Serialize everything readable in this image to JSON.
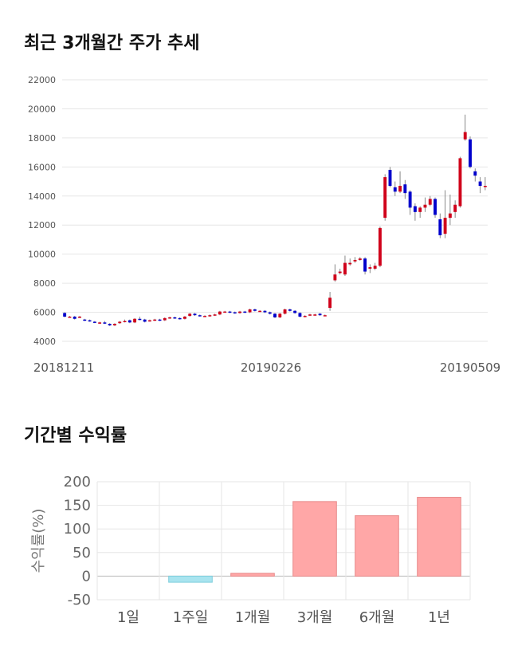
{
  "sections": {
    "price_title": "최근 3개월간 주가 추세",
    "returns_title": "기간별 수익률"
  },
  "colors": {
    "up": "#d0021b",
    "down": "#0000cc",
    "wick": "#888888",
    "bar_pos": "#ffa7a7",
    "bar_neg": "#a8e4ef"
  },
  "chart_data": [
    {
      "type": "candlestick",
      "title": "최근 3개월간 주가 추세",
      "ylim": [
        4000,
        22000
      ],
      "yticks": [
        4000,
        6000,
        8000,
        10000,
        12000,
        14000,
        16000,
        18000,
        20000,
        22000
      ],
      "date_labels": [
        "20181211",
        "20190226",
        "20190509"
      ],
      "grid": true,
      "candles": [
        [
          5950,
          5700,
          6000,
          5650
        ],
        [
          5700,
          5700,
          5750,
          5650
        ],
        [
          5700,
          5550,
          5750,
          5500
        ],
        [
          5650,
          5700,
          5750,
          5600
        ],
        [
          5500,
          5450,
          5550,
          5400
        ],
        [
          5450,
          5400,
          5500,
          5350
        ],
        [
          5350,
          5300,
          5400,
          5250
        ],
        [
          5250,
          5300,
          5350,
          5200
        ],
        [
          5300,
          5250,
          5400,
          5200
        ],
        [
          5200,
          5100,
          5250,
          5050
        ],
        [
          5100,
          5200,
          5250,
          5050
        ],
        [
          5250,
          5350,
          5400,
          5200
        ],
        [
          5350,
          5400,
          5500,
          5300
        ],
        [
          5450,
          5300,
          5500,
          5250
        ],
        [
          5300,
          5550,
          5600,
          5250
        ],
        [
          5550,
          5500,
          5700,
          5450
        ],
        [
          5500,
          5350,
          5550,
          5300
        ],
        [
          5400,
          5450,
          5500,
          5350
        ],
        [
          5450,
          5500,
          5550,
          5400
        ],
        [
          5500,
          5450,
          5550,
          5400
        ],
        [
          5450,
          5600,
          5650,
          5400
        ],
        [
          5600,
          5650,
          5700,
          5550
        ],
        [
          5650,
          5600,
          5700,
          5550
        ],
        [
          5600,
          5550,
          5650,
          5500
        ],
        [
          5550,
          5700,
          5750,
          5500
        ],
        [
          5750,
          5900,
          5950,
          5700
        ],
        [
          5900,
          5800,
          5950,
          5750
        ],
        [
          5800,
          5750,
          5850,
          5700
        ],
        [
          5750,
          5750,
          5800,
          5700
        ],
        [
          5750,
          5800,
          5850,
          5700
        ],
        [
          5800,
          5850,
          5900,
          5750
        ],
        [
          5850,
          6050,
          6100,
          5800
        ],
        [
          6050,
          6050,
          6100,
          6000
        ],
        [
          6050,
          6000,
          6100,
          5950
        ],
        [
          6000,
          5950,
          6050,
          5900
        ],
        [
          5950,
          6050,
          6100,
          5900
        ],
        [
          6050,
          6000,
          6100,
          5950
        ],
        [
          6000,
          6200,
          6250,
          5950
        ],
        [
          6200,
          6100,
          6250,
          6050
        ],
        [
          6100,
          6100,
          6150,
          6050
        ],
        [
          6100,
          6000,
          6150,
          5950
        ],
        [
          6000,
          5900,
          6050,
          5850
        ],
        [
          5900,
          5650,
          5950,
          5600
        ],
        [
          5650,
          5900,
          5950,
          5600
        ],
        [
          5900,
          6200,
          6250,
          5850
        ],
        [
          6200,
          6100,
          6250,
          6050
        ],
        [
          6100,
          5950,
          6150,
          5900
        ],
        [
          5950,
          5700,
          6000,
          5650
        ],
        [
          5700,
          5750,
          5800,
          5650
        ],
        [
          5800,
          5850,
          5900,
          5750
        ],
        [
          5850,
          5850,
          5900,
          5800
        ],
        [
          5900,
          5800,
          5950,
          5750
        ],
        [
          5800,
          5800,
          5850,
          5750
        ],
        [
          6300,
          7000,
          7400,
          6100
        ],
        [
          8200,
          8600,
          9300,
          8100
        ],
        [
          8700,
          8800,
          9000,
          8600
        ],
        [
          8600,
          9400,
          9900,
          8500
        ],
        [
          9300,
          9400,
          9700,
          9200
        ],
        [
          9500,
          9600,
          9800,
          9400
        ],
        [
          9600,
          9700,
          9800,
          9550
        ],
        [
          9700,
          8800,
          9800,
          8600
        ],
        [
          9000,
          9100,
          9300,
          8700
        ],
        [
          9000,
          9200,
          9400,
          8900
        ],
        [
          9200,
          11800,
          11900,
          9100
        ],
        [
          12500,
          15300,
          15500,
          12300
        ],
        [
          15800,
          14700,
          16000,
          14600
        ],
        [
          14600,
          14300,
          15000,
          14000
        ],
        [
          14300,
          14700,
          15700,
          14200
        ],
        [
          14800,
          14200,
          15100,
          13800
        ],
        [
          14300,
          13200,
          14400,
          12700
        ],
        [
          13300,
          12900,
          13500,
          12300
        ],
        [
          12900,
          13200,
          13300,
          12500
        ],
        [
          13200,
          13400,
          13900,
          12900
        ],
        [
          13400,
          13800,
          14000,
          13300
        ],
        [
          13800,
          12700,
          13900,
          12500
        ],
        [
          12400,
          11300,
          12800,
          11100
        ],
        [
          11400,
          12500,
          14400,
          11100
        ],
        [
          12500,
          12800,
          14100,
          12000
        ],
        [
          12900,
          13400,
          13700,
          12500
        ],
        [
          13300,
          16600,
          16700,
          13200
        ],
        [
          17900,
          18400,
          19600,
          17800
        ],
        [
          17900,
          16000,
          18100,
          15900
        ],
        [
          15700,
          15400,
          15900,
          15000
        ],
        [
          15000,
          14700,
          15300,
          14200
        ],
        [
          14700,
          14700,
          15300,
          14400
        ]
      ]
    },
    {
      "type": "bar",
      "title": "기간별 수익률",
      "ylabel": "수익률(%)",
      "ylim": [
        -50,
        200
      ],
      "yticks": [
        200,
        150,
        100,
        50,
        0,
        -50
      ],
      "categories": [
        "1일",
        "1주일",
        "1개월",
        "3개월",
        "6개월",
        "1년"
      ],
      "values": [
        0,
        -13,
        6,
        158,
        128,
        167
      ],
      "grid": true
    }
  ]
}
